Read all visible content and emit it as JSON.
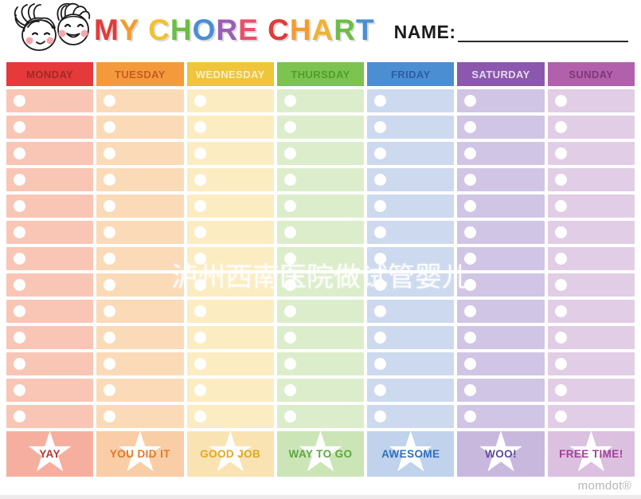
{
  "header": {
    "title_text": "MY CHORE CHART",
    "title_letters": [
      {
        "ch": "M",
        "color": "#e23b3b"
      },
      {
        "ch": "Y",
        "color": "#f59b2e"
      },
      {
        "ch": " ",
        "color": "#000000"
      },
      {
        "ch": "C",
        "color": "#f1c22f"
      },
      {
        "ch": "H",
        "color": "#6cbd45"
      },
      {
        "ch": "O",
        "color": "#4a8fd3"
      },
      {
        "ch": "R",
        "color": "#9a5fb5"
      },
      {
        "ch": "E",
        "color": "#e8506e"
      },
      {
        "ch": " ",
        "color": "#000000"
      },
      {
        "ch": "C",
        "color": "#e23b3b"
      },
      {
        "ch": "H",
        "color": "#f59b2e"
      },
      {
        "ch": "A",
        "color": "#f0b32f"
      },
      {
        "ch": "R",
        "color": "#6cbd45"
      },
      {
        "ch": "T",
        "color": "#4a8fd3"
      }
    ],
    "name_label": "NAME:"
  },
  "rows_per_day": 13,
  "days": [
    {
      "label": "MONDAY",
      "header_bg": "#e5393b",
      "header_text": "#a02a24",
      "row_bg": "#f9c5b5",
      "footer_bg": "#f6af9f",
      "reward": "YAY",
      "reward_color": "#b93632"
    },
    {
      "label": "TUESDAY",
      "header_bg": "#f49a3c",
      "header_text": "#c75b24",
      "row_bg": "#fbdab8",
      "footer_bg": "#f9cda5",
      "reward": "YOU DID IT",
      "reward_color": "#e07b2a"
    },
    {
      "label": "WEDNESDAY",
      "header_bg": "#efc53c",
      "header_text": "#faeec6",
      "row_bg": "#fcecc2",
      "footer_bg": "#fae3b2",
      "reward": "GOOD JOB",
      "reward_color": "#e0a922"
    },
    {
      "label": "THURSDAY",
      "header_bg": "#7dc351",
      "header_text": "#4f9e2b",
      "row_bg": "#dcedcb",
      "footer_bg": "#cce5b7",
      "reward": "WAY TO GO",
      "reward_color": "#5da83e"
    },
    {
      "label": "FRIDAY",
      "header_bg": "#4b8fd2",
      "header_text": "#2b5ea7",
      "row_bg": "#cdd9ee",
      "footer_bg": "#c0d2ec",
      "reward": "AWESOME",
      "reward_color": "#2e6fc0"
    },
    {
      "label": "SATURDAY",
      "header_bg": "#8b58ad",
      "header_text": "#e4d9ef",
      "row_bg": "#d0c5e4",
      "footer_bg": "#c8b8de",
      "reward": "WOO!",
      "reward_color": "#5e4b9e"
    },
    {
      "label": "SUNDAY",
      "header_bg": "#b260ab",
      "header_text": "#7e3779",
      "row_bg": "#e1cde5",
      "footer_bg": "#dbc0e0",
      "reward": "FREE TIME!",
      "reward_color": "#a33f9b"
    }
  ],
  "watermark": {
    "text": "泸州西南医院做试管婴儿"
  },
  "branding": {
    "text": "momdot®"
  }
}
